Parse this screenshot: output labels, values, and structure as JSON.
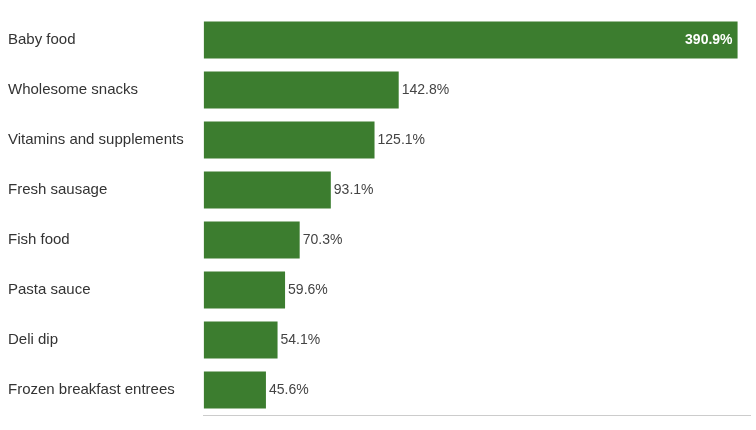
{
  "chart_data": {
    "type": "bar",
    "orientation": "horizontal",
    "categories": [
      "Baby food",
      "Wholesome snacks",
      "Vitamins and supplements",
      "Fresh sausage",
      "Fish food",
      "Pasta sauce",
      "Deli dip",
      "Frozen breakfast entrees"
    ],
    "values": [
      390.9,
      142.8,
      125.1,
      93.1,
      70.3,
      59.6,
      54.1,
      45.6
    ],
    "value_labels": [
      "390.9%",
      "142.8%",
      "125.1%",
      "93.1%",
      "70.3%",
      "59.6%",
      "54.1%",
      "45.6%"
    ],
    "color": "#3c7d2f",
    "xlim": [
      0,
      400
    ],
    "xticks": [],
    "grid": false,
    "data_labels": true,
    "tick_labels": "y"
  }
}
